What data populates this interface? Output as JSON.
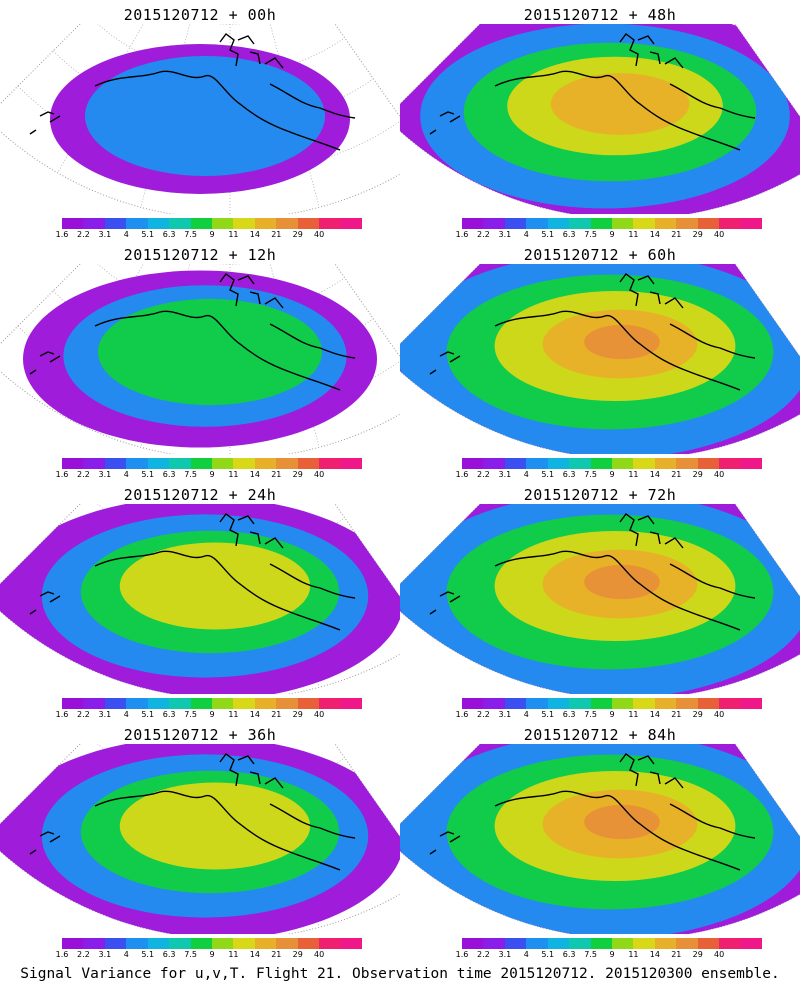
{
  "panels": [
    {
      "title": "2015120712 + 00h"
    },
    {
      "title": "2015120712 + 48h"
    },
    {
      "title": "2015120712 + 12h"
    },
    {
      "title": "2015120712 + 60h"
    },
    {
      "title": "2015120712 + 24h"
    },
    {
      "title": "2015120712 + 72h"
    },
    {
      "title": "2015120712 + 36h"
    },
    {
      "title": "2015120712 + 84h"
    }
  ],
  "colorbar": {
    "colors": [
      "#9a10d8",
      "#8a1ee8",
      "#3a50f0",
      "#1e90f0",
      "#10b4e0",
      "#10c8b0",
      "#10d040",
      "#90d818",
      "#d8d818",
      "#e8b028",
      "#e89038",
      "#e86038",
      "#f02070",
      "#f01888"
    ],
    "labels": [
      "1.6",
      "2.2",
      "3.1",
      "4",
      "5.1",
      "6.3",
      "7.5",
      "9",
      "11",
      "14",
      "21",
      "29",
      "40"
    ]
  },
  "caption": "Signal Variance for u,v,T. Flight 21. Observation time 2015120712. 2015120300 ensemble."
}
